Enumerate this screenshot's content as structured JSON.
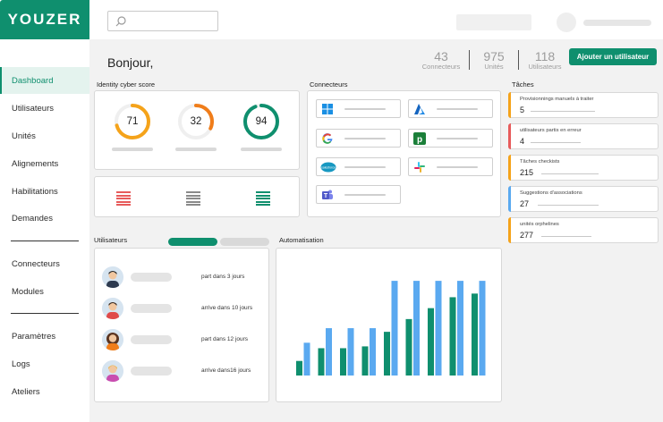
{
  "brand": {
    "logo": "YOUZER",
    "accent": "#0f8f6e"
  },
  "search": {
    "placeholder": ""
  },
  "sidebar": {
    "items": [
      {
        "label": "Dashboard",
        "active": true
      },
      {
        "label": "Utilisateurs"
      },
      {
        "label": "Unités"
      },
      {
        "label": "Alignements"
      },
      {
        "label": "Habilitations"
      },
      {
        "label": "Demandes"
      },
      {
        "label": "Connecteurs"
      },
      {
        "label": "Modules"
      },
      {
        "label": "Paramètres"
      },
      {
        "label": "Logs"
      },
      {
        "label": "Ateliers"
      }
    ]
  },
  "header": {
    "greeting": "Bonjour,",
    "stats": [
      {
        "value": "43",
        "label": "Connecteurs"
      },
      {
        "value": "975",
        "label": "Unités"
      },
      {
        "value": "118",
        "label": "Utilisateurs"
      }
    ],
    "add_user_label": "Ajouter un utilisateur"
  },
  "identity_score": {
    "title": "Identity cyber score",
    "gauges": [
      {
        "value": "71",
        "level": 0.71,
        "color": "#f5a31a"
      },
      {
        "value": "32",
        "level": 0.32,
        "color": "#f07d1a"
      },
      {
        "value": "94",
        "level": 0.94,
        "color": "#0f8f6e"
      }
    ],
    "stacks": [
      {
        "color": "#e75b5b",
        "icon": "stack-red-icon"
      },
      {
        "color": "#8a8a8a",
        "icon": "stack-gray-icon"
      },
      {
        "color": "#0f8f6e",
        "icon": "stack-green-icon"
      }
    ]
  },
  "connecteurs": {
    "title": "Connecteurs",
    "items": [
      {
        "icon": "windows-icon"
      },
      {
        "icon": "azure-icon"
      },
      {
        "icon": "google-icon"
      },
      {
        "icon": "pipedrive-icon"
      },
      {
        "icon": "salesforce-icon"
      },
      {
        "icon": "slack-icon"
      },
      {
        "icon": "teams-icon"
      }
    ]
  },
  "taches": {
    "title": "Tâches",
    "items": [
      {
        "label": "Provisionnings manuels à traiter",
        "count": "5",
        "color": "#f5a31a"
      },
      {
        "label": "utilisateurs partis en erreur",
        "count": "4",
        "color": "#e75b5b"
      },
      {
        "label": "Tâches checkists",
        "count": "215",
        "color": "#f5a31a"
      },
      {
        "label": "Suggestions d'associations",
        "count": "27",
        "color": "#5aa9f0"
      },
      {
        "label": "unités orphelines",
        "count": "277",
        "color": "#f5a31a"
      }
    ]
  },
  "utilisateurs": {
    "title": "Utilisateurs",
    "rows": [
      {
        "text": "part dans 3 jours"
      },
      {
        "text": "arrive dans 10 jours"
      },
      {
        "text": "part dans 12 jours"
      },
      {
        "text": "arrive dans16 jours"
      }
    ]
  },
  "automatisation": {
    "title": "Automatisation"
  },
  "chart_data": {
    "type": "bar",
    "categories": [
      "1",
      "2",
      "3",
      "4",
      "5",
      "6",
      "7",
      "8",
      "9"
    ],
    "series": [
      {
        "color": "#0f8f6e",
        "values": [
          8,
          15,
          15,
          16,
          24,
          31,
          37,
          43,
          45
        ]
      },
      {
        "color": "#5aa9f0",
        "values": [
          18,
          26,
          26,
          26,
          52,
          52,
          52,
          52,
          52
        ]
      }
    ],
    "ylim": [
      0,
      55
    ]
  }
}
